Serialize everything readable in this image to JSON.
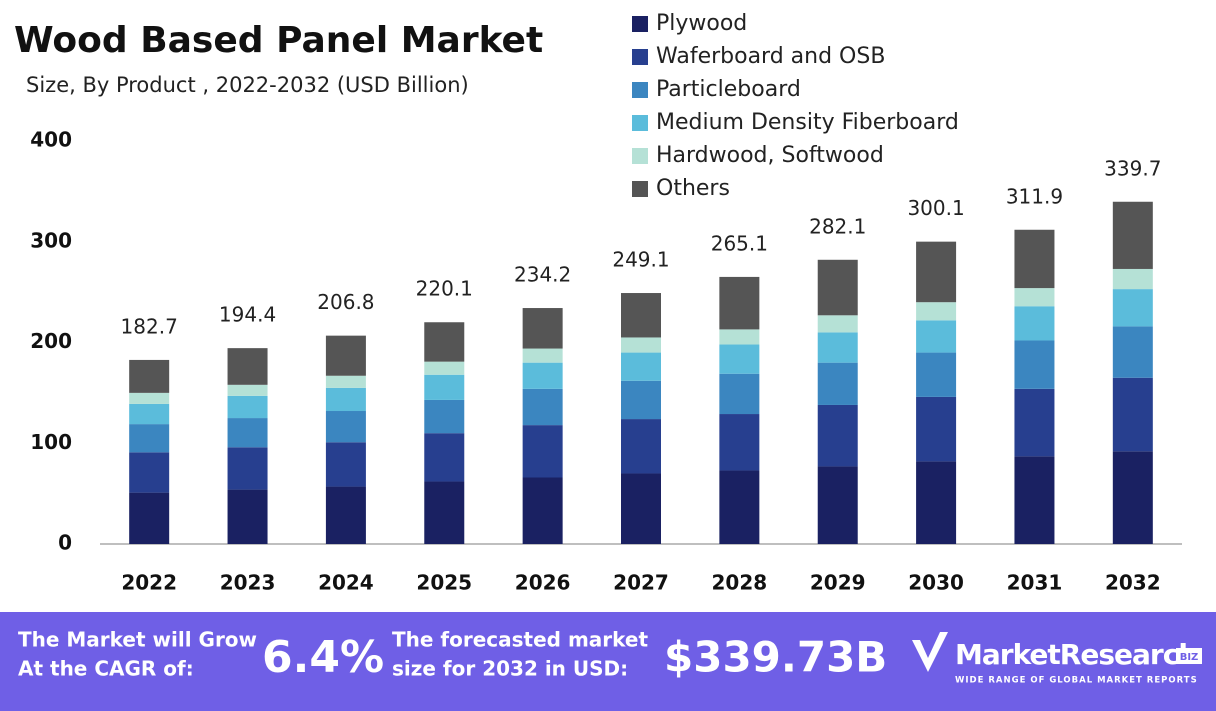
{
  "chart_data": {
    "type": "stacked-bar",
    "title": "Wood Based Panel Market",
    "subtitle": "Size, By Product , 2022-2032 (USD Billion)",
    "categories": [
      "2022",
      "2023",
      "2024",
      "2025",
      "2026",
      "2027",
      "2028",
      "2029",
      "2030",
      "2031",
      "2032"
    ],
    "series": [
      {
        "name": "Plywood",
        "color": "#1a2162",
        "values": [
          51,
          54,
          57,
          62,
          66,
          70,
          73,
          77,
          82,
          87,
          92
        ]
      },
      {
        "name": "Waferboard and OSB",
        "color": "#273f8f",
        "values": [
          40,
          42,
          44,
          48,
          52,
          54,
          56,
          61,
          64,
          67,
          73
        ]
      },
      {
        "name": "Particleboard",
        "color": "#3b86c0",
        "values": [
          28,
          29,
          31,
          33,
          36,
          38,
          40,
          42,
          44,
          48,
          51
        ]
      },
      {
        "name": "Medium Density Fiberboard",
        "color": "#5bbcdb",
        "values": [
          20,
          22,
          23,
          25,
          26,
          28,
          29,
          30,
          32,
          34,
          37
        ]
      },
      {
        "name": "Hardwood, Softwood",
        "color": "#b5e1d6",
        "values": [
          11,
          11,
          12,
          13,
          14,
          15,
          15,
          17,
          18,
          18,
          20
        ]
      },
      {
        "name": "Others",
        "color": "#555555",
        "values": [
          32.7,
          36.4,
          39.8,
          39.1,
          40.2,
          44.1,
          52.1,
          55.1,
          60.1,
          57.9,
          66.7
        ]
      }
    ],
    "totals": [
      182.7,
      194.4,
      206.8,
      220.1,
      234.2,
      249.1,
      265.1,
      282.1,
      300.1,
      311.9,
      339.7
    ],
    "ylim": [
      0,
      400
    ],
    "yticks": [
      0,
      100,
      200,
      300,
      400
    ],
    "grid": false,
    "legend": "top-right"
  },
  "banner": {
    "grow_line1": "The Market will Grow",
    "grow_line2": "At the CAGR of:",
    "cagr": "6.4%",
    "forecast_line1": "The forecasted market",
    "forecast_line2": "size for 2032 in USD:",
    "forecast_value": "$339.73B",
    "brand": "MarketResearch",
    "brand_suffix": "BIZ",
    "tagline": "WIDE RANGE OF GLOBAL MARKET REPORTS"
  }
}
